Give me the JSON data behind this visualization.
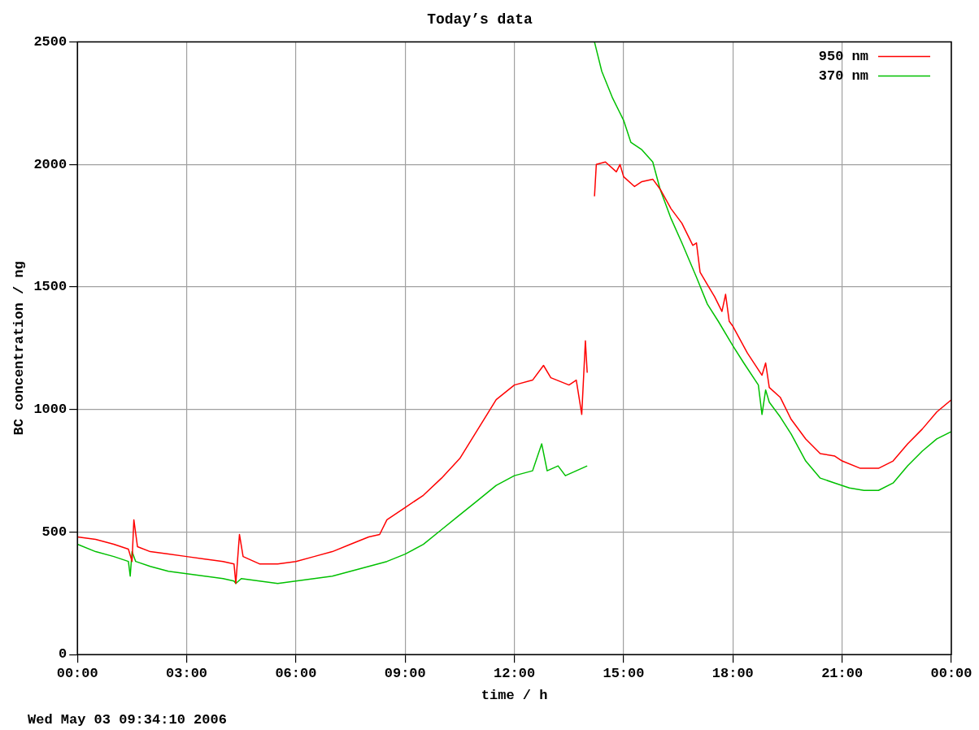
{
  "chart_data": {
    "type": "line",
    "title": "Today’s data",
    "xlabel": "time / h",
    "ylabel": "BC concentration / ng",
    "xlim": [
      0,
      24
    ],
    "xticks": [
      {
        "value": 0,
        "label": "00:00"
      },
      {
        "value": 3,
        "label": "03:00"
      },
      {
        "value": 6,
        "label": "06:00"
      },
      {
        "value": 9,
        "label": "09:00"
      },
      {
        "value": 12,
        "label": "12:00"
      },
      {
        "value": 15,
        "label": "15:00"
      },
      {
        "value": 18,
        "label": "18:00"
      },
      {
        "value": 21,
        "label": "21:00"
      },
      {
        "value": 24,
        "label": "00:00"
      }
    ],
    "ylim": [
      0,
      2500
    ],
    "yticks": [
      0,
      500,
      1000,
      1500,
      2000,
      2500
    ],
    "grid": true,
    "legend": "top right",
    "marker": "none",
    "line_style": "solid",
    "annotations": [
      "Wed May 03 09:34:10 2006"
    ],
    "series": [
      {
        "name": "950 nm",
        "color": "#ff0000",
        "x": [
          0,
          0.5,
          1,
          1.4,
          1.5,
          1.55,
          1.65,
          2,
          2.5,
          3,
          3.5,
          4,
          4.3,
          4.35,
          4.45,
          4.55,
          5,
          5.5,
          6,
          6.5,
          7,
          7.5,
          8,
          8.3,
          8.5,
          9,
          9.5,
          10,
          10.5,
          11,
          11.5,
          12,
          12.5,
          12.8,
          13,
          13.5,
          13.7,
          13.85,
          13.95,
          14,
          14.1,
          14.2,
          14.25,
          14.5,
          14.8,
          14.9,
          15,
          15.3,
          15.5,
          15.8,
          16,
          16.3,
          16.6,
          16.9,
          17,
          17.1,
          17.3,
          17.5,
          17.7,
          17.8,
          17.9,
          18,
          18.4,
          18.8,
          18.9,
          19,
          19.3,
          19.6,
          20,
          20.4,
          20.8,
          21,
          21.5,
          22,
          22.4,
          22.8,
          23.2,
          23.6,
          24
        ],
        "values": [
          480,
          470,
          450,
          430,
          380,
          550,
          440,
          420,
          410,
          400,
          390,
          380,
          370,
          290,
          490,
          400,
          370,
          370,
          380,
          400,
          420,
          450,
          480,
          490,
          550,
          600,
          650,
          720,
          800,
          920,
          1040,
          1100,
          1120,
          1180,
          1130,
          1100,
          1120,
          980,
          1280,
          1150,
          null,
          1870,
          2000,
          2010,
          1970,
          2000,
          1950,
          1910,
          1930,
          1940,
          1900,
          1820,
          1760,
          1670,
          1680,
          1560,
          1510,
          1460,
          1400,
          1470,
          1360,
          1340,
          1230,
          1140,
          1190,
          1090,
          1050,
          960,
          880,
          820,
          810,
          790,
          760,
          760,
          790,
          860,
          920,
          990,
          1040
        ]
      },
      {
        "name": "370 nm",
        "color": "#00c000",
        "x": [
          0,
          0.5,
          1,
          1.4,
          1.45,
          1.5,
          1.6,
          2,
          2.5,
          3,
          3.5,
          4,
          4.3,
          4.35,
          4.5,
          5,
          5.5,
          6,
          6.5,
          7,
          7.5,
          8,
          8.5,
          9,
          9.5,
          10,
          10.5,
          11,
          11.5,
          12,
          12.5,
          12.75,
          12.9,
          13.2,
          13.4,
          13.7,
          14,
          14.1,
          14.2,
          14.4,
          14.7,
          15,
          15.2,
          15.5,
          15.8,
          16,
          16.3,
          16.6,
          17,
          17.3,
          17.6,
          18,
          18.3,
          18.7,
          18.8,
          18.9,
          19,
          19.3,
          19.6,
          20,
          20.4,
          20.8,
          21.2,
          21.6,
          22,
          22.4,
          22.8,
          23.2,
          23.6,
          24
        ],
        "values": [
          450,
          420,
          400,
          380,
          320,
          420,
          380,
          360,
          340,
          330,
          320,
          310,
          300,
          290,
          310,
          300,
          290,
          300,
          310,
          320,
          340,
          360,
          380,
          410,
          450,
          510,
          570,
          630,
          690,
          730,
          750,
          860,
          750,
          770,
          730,
          750,
          770,
          null,
          2500,
          2380,
          2270,
          2180,
          2090,
          2060,
          2010,
          1900,
          1780,
          1680,
          1540,
          1430,
          1360,
          1260,
          1190,
          1100,
          980,
          1080,
          1030,
          970,
          900,
          790,
          720,
          700,
          680,
          670,
          670,
          700,
          770,
          830,
          880,
          910
        ]
      }
    ]
  }
}
